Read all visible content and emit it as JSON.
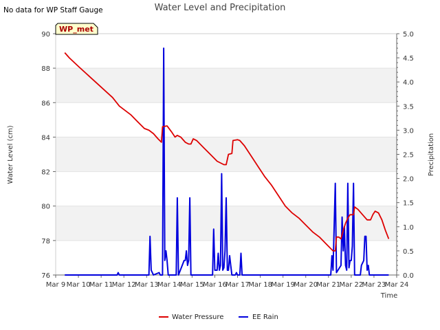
{
  "note": "No data for WP Staff Gauge",
  "chart_data": {
    "type": "line",
    "title": "Water Level and Precipitation",
    "site_label": "WP_met",
    "xlabel": "Time",
    "ylabel_left": "Water Level (cm)",
    "ylabel_right": "Precipitation",
    "x_ticks": [
      "Mar 9",
      "Mar 10",
      "Mar 11",
      "Mar 12",
      "Mar 13",
      "Mar 14",
      "Mar 15",
      "Mar 16",
      "Mar 17",
      "Mar 18",
      "Mar 19",
      "Mar 20",
      "Mar 21",
      "Mar 22",
      "Mar 23",
      "Mar 24"
    ],
    "xlim": [
      9,
      24
    ],
    "ylim_left": [
      76,
      90
    ],
    "y_ticks_left": [
      "76",
      "78",
      "80",
      "82",
      "84",
      "86",
      "88",
      "90"
    ],
    "ylim_right": [
      0,
      5
    ],
    "y_ticks_right": [
      "0.0",
      "0.5",
      "1.0",
      "1.5",
      "2.0",
      "2.5",
      "3.0",
      "3.5",
      "4.0",
      "4.5",
      "5.0"
    ],
    "grid": "horizontal bands",
    "legend": "bottom-center",
    "colors": {
      "water": "#dd0000",
      "rain": "#0000dd",
      "band": "#f2f2f2"
    },
    "series": [
      {
        "name": "Water Pressure",
        "color": "#dd0000",
        "points": [
          [
            9.4,
            88.9
          ],
          [
            9.6,
            88.6
          ],
          [
            10.0,
            88.1
          ],
          [
            10.5,
            87.5
          ],
          [
            11.0,
            86.9
          ],
          [
            11.5,
            86.3
          ],
          [
            11.8,
            85.8
          ],
          [
            12.0,
            85.6
          ],
          [
            12.3,
            85.3
          ],
          [
            12.6,
            84.9
          ],
          [
            12.9,
            84.5
          ],
          [
            13.1,
            84.4
          ],
          [
            13.3,
            84.2
          ],
          [
            13.5,
            83.9
          ],
          [
            13.65,
            83.7
          ],
          [
            13.7,
            84.6
          ],
          [
            13.9,
            84.65
          ],
          [
            14.1,
            84.3
          ],
          [
            14.25,
            84.0
          ],
          [
            14.35,
            84.1
          ],
          [
            14.5,
            84.0
          ],
          [
            14.7,
            83.7
          ],
          [
            14.85,
            83.6
          ],
          [
            14.95,
            83.6
          ],
          [
            15.05,
            83.9
          ],
          [
            15.2,
            83.8
          ],
          [
            15.5,
            83.4
          ],
          [
            15.8,
            83.0
          ],
          [
            16.1,
            82.6
          ],
          [
            16.4,
            82.4
          ],
          [
            16.5,
            82.4
          ],
          [
            16.6,
            83.0
          ],
          [
            16.75,
            83.05
          ],
          [
            16.8,
            83.8
          ],
          [
            17.0,
            83.85
          ],
          [
            17.1,
            83.8
          ],
          [
            17.3,
            83.5
          ],
          [
            17.6,
            82.9
          ],
          [
            17.9,
            82.3
          ],
          [
            18.2,
            81.7
          ],
          [
            18.5,
            81.2
          ],
          [
            18.8,
            80.6
          ],
          [
            19.1,
            80.0
          ],
          [
            19.4,
            79.6
          ],
          [
            19.7,
            79.3
          ],
          [
            20.0,
            78.9
          ],
          [
            20.3,
            78.5
          ],
          [
            20.6,
            78.2
          ],
          [
            20.9,
            77.8
          ],
          [
            21.2,
            77.4
          ],
          [
            21.3,
            77.4
          ],
          [
            21.35,
            78.2
          ],
          [
            21.45,
            78.2
          ],
          [
            21.55,
            78.1
          ],
          [
            21.65,
            78.6
          ],
          [
            21.75,
            79.0
          ],
          [
            21.85,
            79.3
          ],
          [
            21.95,
            79.5
          ],
          [
            22.1,
            79.5
          ],
          [
            22.15,
            79.95
          ],
          [
            22.3,
            79.8
          ],
          [
            22.5,
            79.5
          ],
          [
            22.7,
            79.2
          ],
          [
            22.85,
            79.2
          ],
          [
            22.95,
            79.5
          ],
          [
            23.05,
            79.7
          ],
          [
            23.2,
            79.6
          ],
          [
            23.35,
            79.2
          ],
          [
            23.5,
            78.6
          ],
          [
            23.65,
            78.1
          ]
        ]
      },
      {
        "name": "EE Rain",
        "color": "#0000dd",
        "points": [
          [
            9.4,
            0
          ],
          [
            11.7,
            0
          ],
          [
            11.75,
            0.05
          ],
          [
            11.8,
            0
          ],
          [
            13.1,
            0
          ],
          [
            13.15,
            0.8
          ],
          [
            13.2,
            0.1
          ],
          [
            13.3,
            0
          ],
          [
            13.55,
            0.05
          ],
          [
            13.6,
            0
          ],
          [
            13.7,
            0
          ],
          [
            13.75,
            4.7
          ],
          [
            13.8,
            0.3
          ],
          [
            13.85,
            0.5
          ],
          [
            13.9,
            0.3
          ],
          [
            13.95,
            0
          ],
          [
            14.3,
            0
          ],
          [
            14.35,
            1.6
          ],
          [
            14.4,
            0
          ],
          [
            14.65,
            0.3
          ],
          [
            14.7,
            0.3
          ],
          [
            14.75,
            0.5
          ],
          [
            14.8,
            0.2
          ],
          [
            14.85,
            0.3
          ],
          [
            14.9,
            1.6
          ],
          [
            14.95,
            0
          ],
          [
            15.9,
            0
          ],
          [
            15.95,
            0.95
          ],
          [
            16.0,
            0.1
          ],
          [
            16.1,
            0.1
          ],
          [
            16.15,
            0.45
          ],
          [
            16.2,
            0.1
          ],
          [
            16.25,
            0.2
          ],
          [
            16.3,
            2.1
          ],
          [
            16.35,
            0.1
          ],
          [
            16.4,
            0.15
          ],
          [
            16.45,
            0.5
          ],
          [
            16.5,
            1.6
          ],
          [
            16.55,
            0.1
          ],
          [
            16.6,
            0.1
          ],
          [
            16.65,
            0.4
          ],
          [
            16.7,
            0.2
          ],
          [
            16.75,
            0
          ],
          [
            16.9,
            0
          ],
          [
            16.95,
            0.05
          ],
          [
            17.0,
            0
          ],
          [
            17.1,
            0
          ],
          [
            17.15,
            0.45
          ],
          [
            17.2,
            0
          ],
          [
            21.1,
            0
          ],
          [
            21.15,
            0.4
          ],
          [
            21.2,
            0.1
          ],
          [
            21.3,
            1.9
          ],
          [
            21.35,
            0.05
          ],
          [
            21.55,
            0.2
          ],
          [
            21.6,
            1.2
          ],
          [
            21.65,
            0.5
          ],
          [
            21.7,
            1.0
          ],
          [
            21.75,
            0.2
          ],
          [
            21.8,
            0.1
          ],
          [
            21.85,
            1.9
          ],
          [
            21.9,
            0.15
          ],
          [
            21.95,
            0.3
          ],
          [
            22.0,
            0.3
          ],
          [
            22.05,
            0.6
          ],
          [
            22.1,
            1.9
          ],
          [
            22.15,
            0
          ],
          [
            22.4,
            0
          ],
          [
            22.45,
            0.2
          ],
          [
            22.5,
            0.25
          ],
          [
            22.55,
            0.3
          ],
          [
            22.6,
            0.8
          ],
          [
            22.65,
            0.8
          ],
          [
            22.7,
            0.1
          ],
          [
            22.75,
            0.2
          ],
          [
            22.8,
            0
          ],
          [
            23.65,
            0
          ]
        ]
      }
    ]
  }
}
